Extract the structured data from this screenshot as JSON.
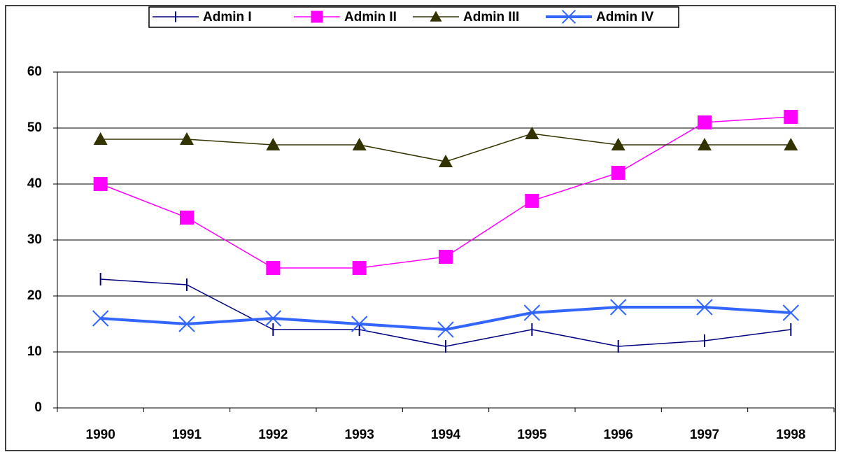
{
  "chart_data": {
    "type": "line",
    "categories": [
      "1990",
      "1991",
      "1992",
      "1993",
      "1994",
      "1995",
      "1996",
      "1997",
      "1998"
    ],
    "series": [
      {
        "name": "Admin I",
        "color": "#000080",
        "marker": "tick",
        "line_width": 1.5,
        "values": [
          23,
          22,
          14,
          14,
          11,
          14,
          11,
          12,
          14
        ]
      },
      {
        "name": "Admin II",
        "color": "#ff00ff",
        "marker": "square",
        "line_width": 1.5,
        "values": [
          40,
          34,
          25,
          25,
          27,
          37,
          42,
          51,
          52
        ]
      },
      {
        "name": "Admin III",
        "color": "#333300",
        "marker": "triangle",
        "line_width": 1.5,
        "values": [
          48,
          48,
          47,
          47,
          44,
          49,
          47,
          47,
          47
        ]
      },
      {
        "name": "Admin IV",
        "color": "#3366ff",
        "marker": "x",
        "line_width": 4,
        "values": [
          16,
          15,
          16,
          15,
          14,
          17,
          18,
          18,
          17
        ]
      }
    ],
    "ylim": [
      0,
      60
    ],
    "yticks": [
      0,
      10,
      20,
      30,
      40,
      50,
      60
    ],
    "grid": true,
    "legend": "top"
  }
}
